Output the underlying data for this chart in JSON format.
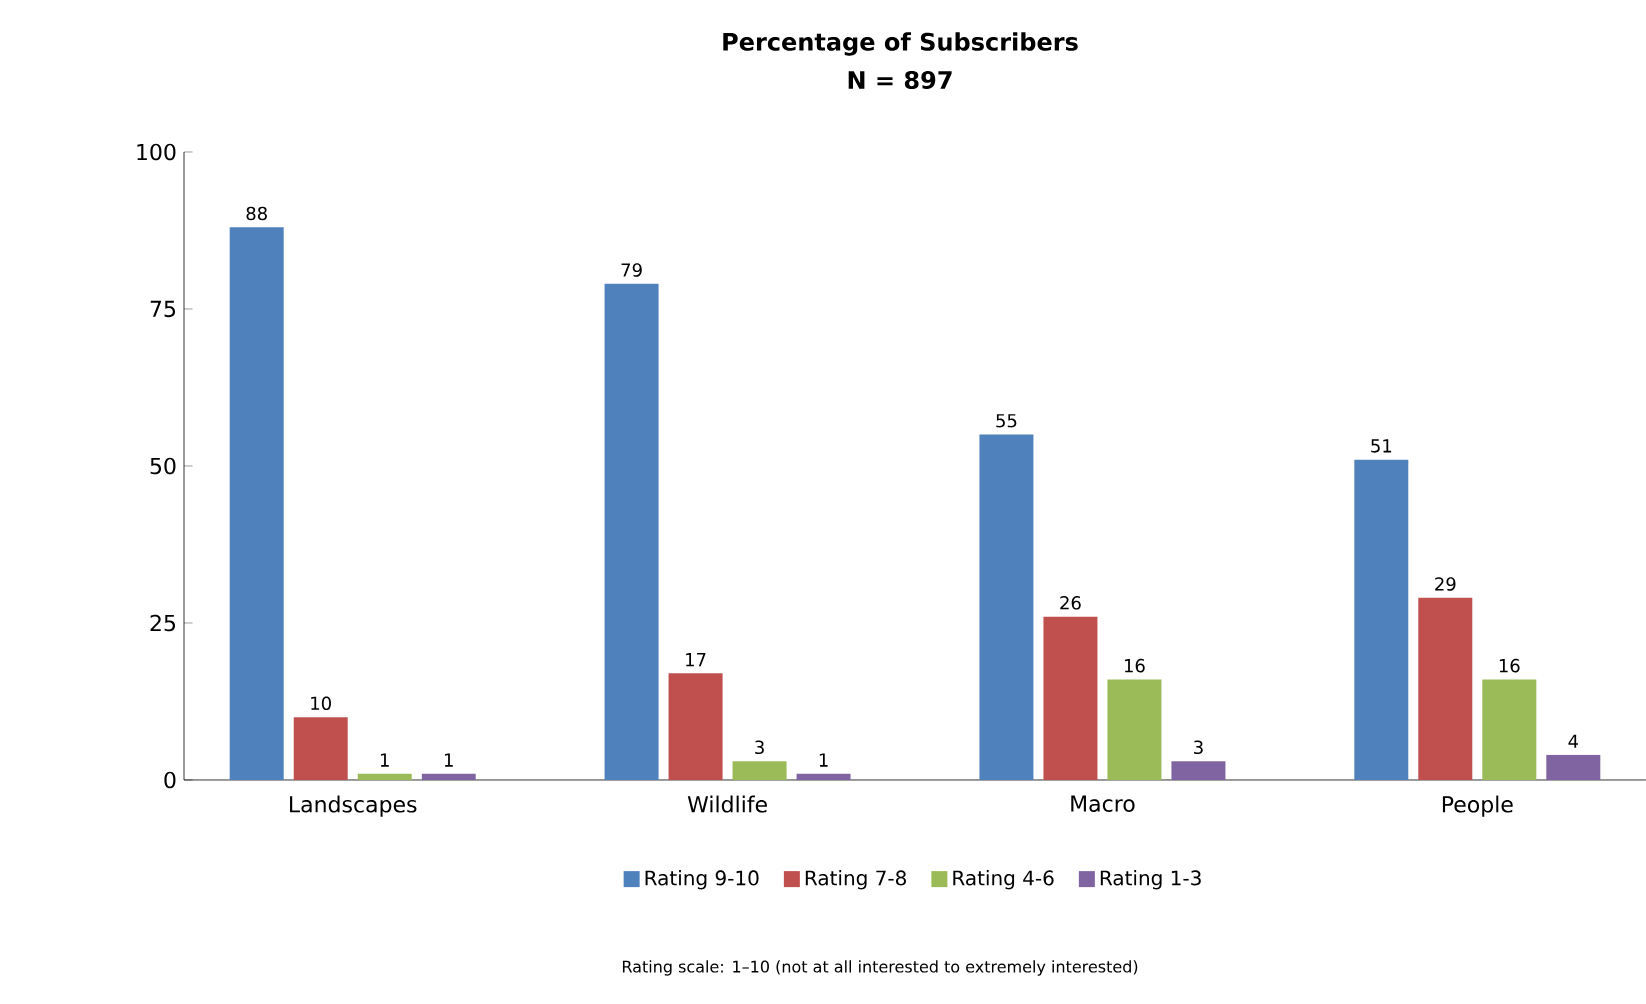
{
  "chart_data": {
    "type": "bar",
    "title": "Percentage of Subscribers",
    "subtitle": "N = 897",
    "categories": [
      "Landscapes",
      "Wildlife",
      "Macro",
      "People"
    ],
    "series": [
      {
        "name": "Rating 9-10",
        "color": "#4f81bd",
        "values": [
          88,
          79,
          55,
          51
        ]
      },
      {
        "name": "Rating 7-8",
        "color": "#c0504d",
        "values": [
          10,
          17,
          26,
          29
        ]
      },
      {
        "name": "Rating 4-6",
        "color": "#9bbb59",
        "values": [
          1,
          3,
          16,
          16
        ]
      },
      {
        "name": "Rating 1-3",
        "color": "#8064a2",
        "values": [
          1,
          1,
          3,
          4
        ]
      }
    ],
    "ylim": [
      0,
      100
    ],
    "yticks": [
      0,
      25,
      50,
      75,
      100
    ],
    "data_labels": true,
    "legend": "bottom",
    "annotations": [
      "Rating scale: 1–10 (not at all interested to extremely interested)"
    ]
  }
}
